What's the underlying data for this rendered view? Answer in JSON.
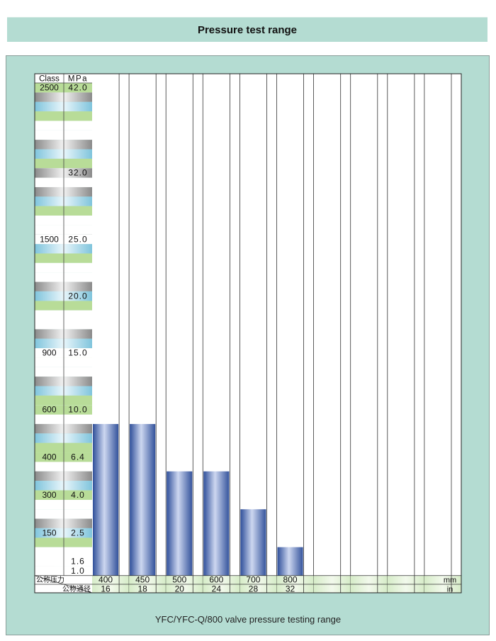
{
  "header": {
    "title": "Pressure test range"
  },
  "caption": "YFC/YFC-Q/800 valve pressure testing range",
  "colors": {
    "band_bg": "#b4dcd2",
    "bar_dark": "#2f4f9a",
    "bar_light": "#cdd7f0"
  },
  "chart_data": {
    "type": "bar",
    "left_axis": {
      "class_header": "Class",
      "mpa_header": "MPa",
      "ticks": [
        {
          "mpa": "42.0",
          "class": "2500"
        },
        {
          "mpa": "32.0",
          "class": ""
        },
        {
          "mpa": "25.0",
          "class": "1500"
        },
        {
          "mpa": "20.0",
          "class": ""
        },
        {
          "mpa": "15.0",
          "class": "900"
        },
        {
          "mpa": "10.0",
          "class": "600"
        },
        {
          "mpa": "6.4",
          "class": "400"
        },
        {
          "mpa": "4.0",
          "class": "300"
        },
        {
          "mpa": "2.5",
          "class": "150"
        },
        {
          "mpa": "1.6",
          "class": ""
        },
        {
          "mpa": "1.0",
          "class": ""
        }
      ]
    },
    "bottom_axis": {
      "row1_label": "公称压力",
      "row2_label": "公称通径",
      "unit_mm": "mm",
      "unit_in": "in",
      "mm": [
        "400",
        "450",
        "500",
        "600",
        "700",
        "800",
        "",
        "",
        "",
        ""
      ],
      "in": [
        "16",
        "18",
        "20",
        "24",
        "28",
        "32",
        "",
        "",
        "",
        ""
      ]
    },
    "categories": [
      "400",
      "450",
      "500",
      "600",
      "700",
      "800"
    ],
    "values": [
      10.0,
      10.0,
      6.4,
      6.4,
      4.0,
      2.5
    ],
    "ylabel": "MPa"
  }
}
